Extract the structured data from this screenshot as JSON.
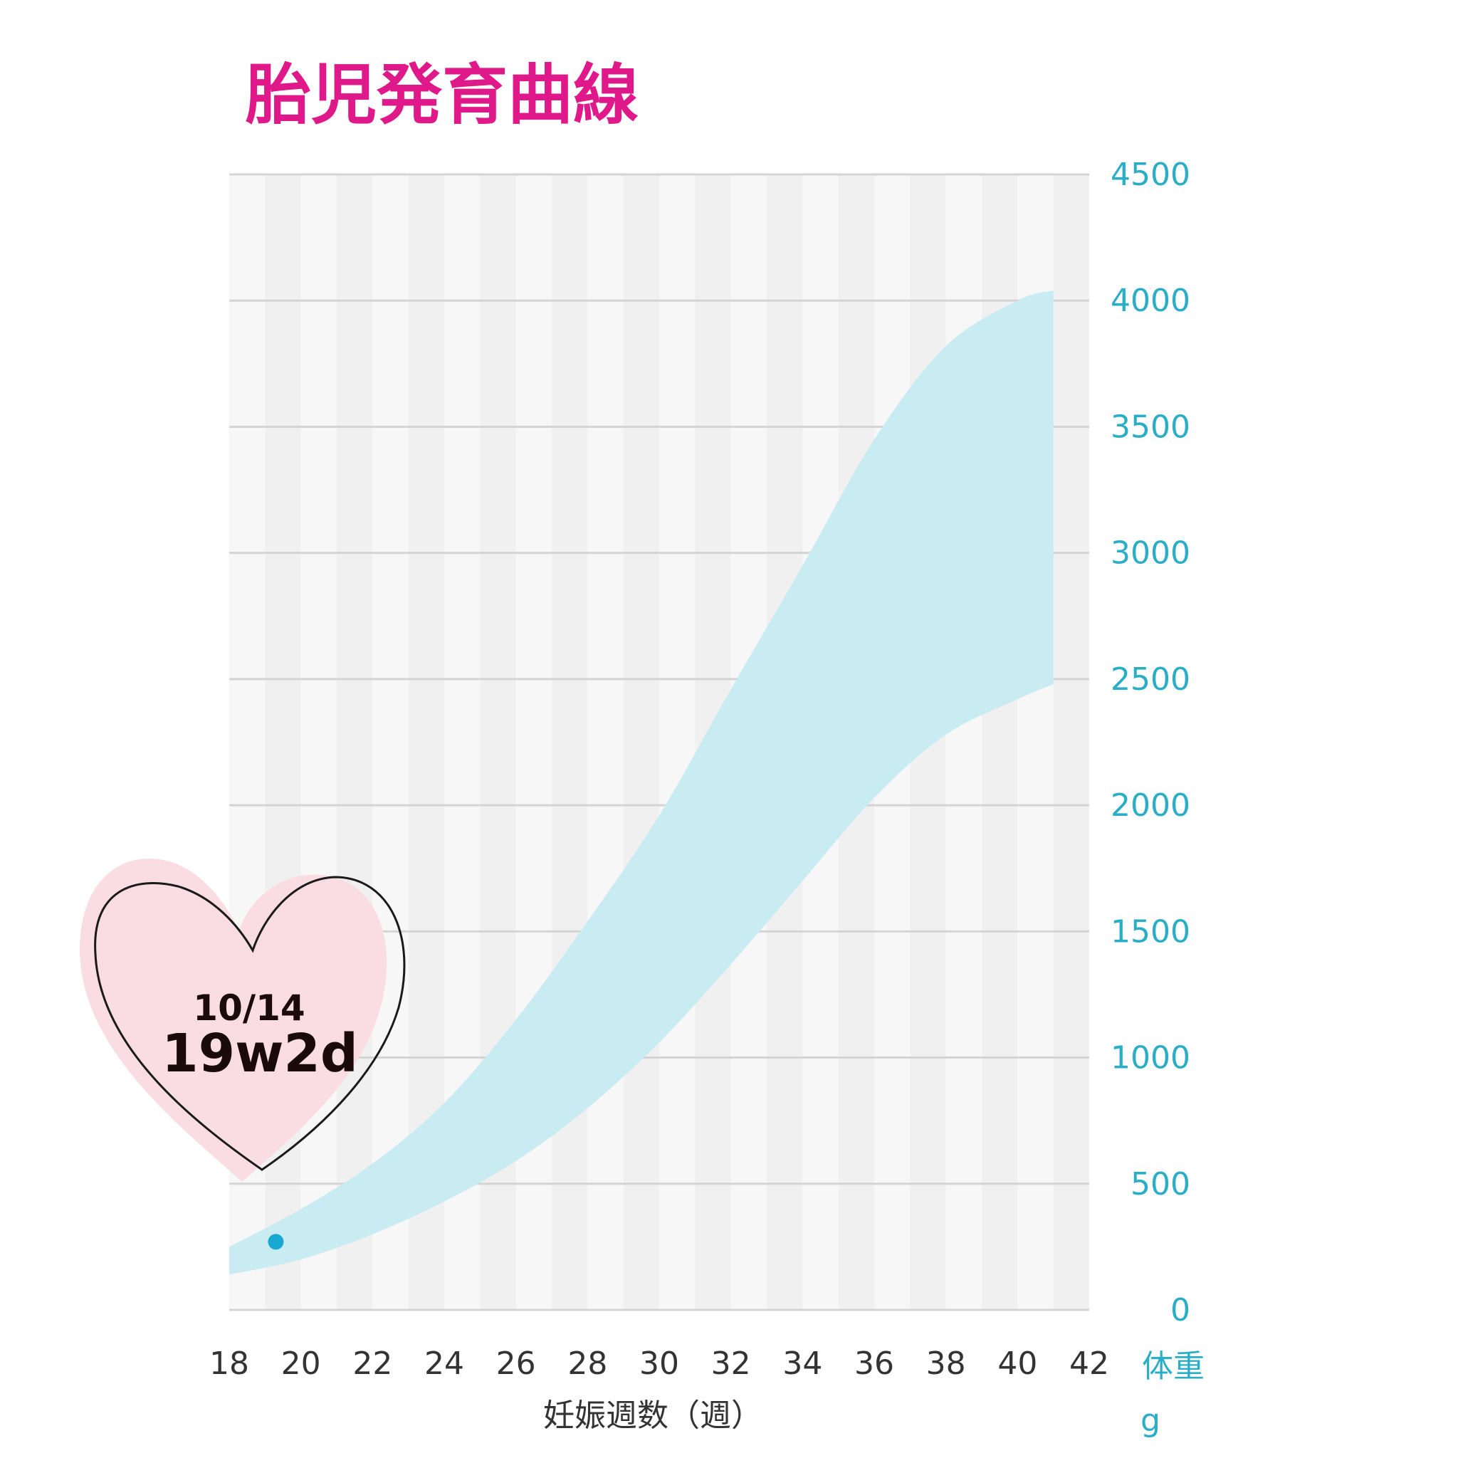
{
  "title": "胎児発育曲線",
  "colors": {
    "title": "#e0198a",
    "band": "#c9ebf2",
    "point": "#17a9d1",
    "y_tick": "#2aaec8",
    "grid": "#d4d4d4",
    "stripe_light": "#f7f7f7",
    "stripe_dark": "#f0f0f0",
    "heart_fill": "#f9dde2"
  },
  "badge": {
    "icon": "heart-icon",
    "date": "10/14",
    "gestation": "19w2d"
  },
  "chart_data": {
    "type": "area",
    "title": "胎児発育曲線",
    "xlabel": "妊娠週数（週）",
    "ylabel_line1": "体重",
    "ylabel_line2": "g",
    "xlim": [
      18,
      42
    ],
    "ylim": [
      0,
      4500
    ],
    "x_ticks": [
      "18",
      "20",
      "22",
      "24",
      "26",
      "28",
      "30",
      "32",
      "34",
      "36",
      "38",
      "40",
      "42"
    ],
    "y_ticks": [
      "0",
      "500",
      "1000",
      "1500",
      "2000",
      "2500",
      "3000",
      "3500",
      "4000",
      "4500"
    ],
    "y_axis_position": "right",
    "grid": true,
    "band": {
      "x": [
        18,
        20,
        22,
        24,
        26,
        28,
        30,
        32,
        34,
        36,
        38,
        40,
        41
      ],
      "upper": [
        250,
        400,
        580,
        820,
        1150,
        1540,
        1960,
        2460,
        2950,
        3450,
        3820,
        4000,
        4040
      ],
      "lower": [
        140,
        200,
        300,
        430,
        590,
        800,
        1060,
        1370,
        1700,
        2030,
        2280,
        2420,
        2480
      ]
    },
    "points": [
      {
        "x": 19.3,
        "y": 270
      }
    ]
  }
}
